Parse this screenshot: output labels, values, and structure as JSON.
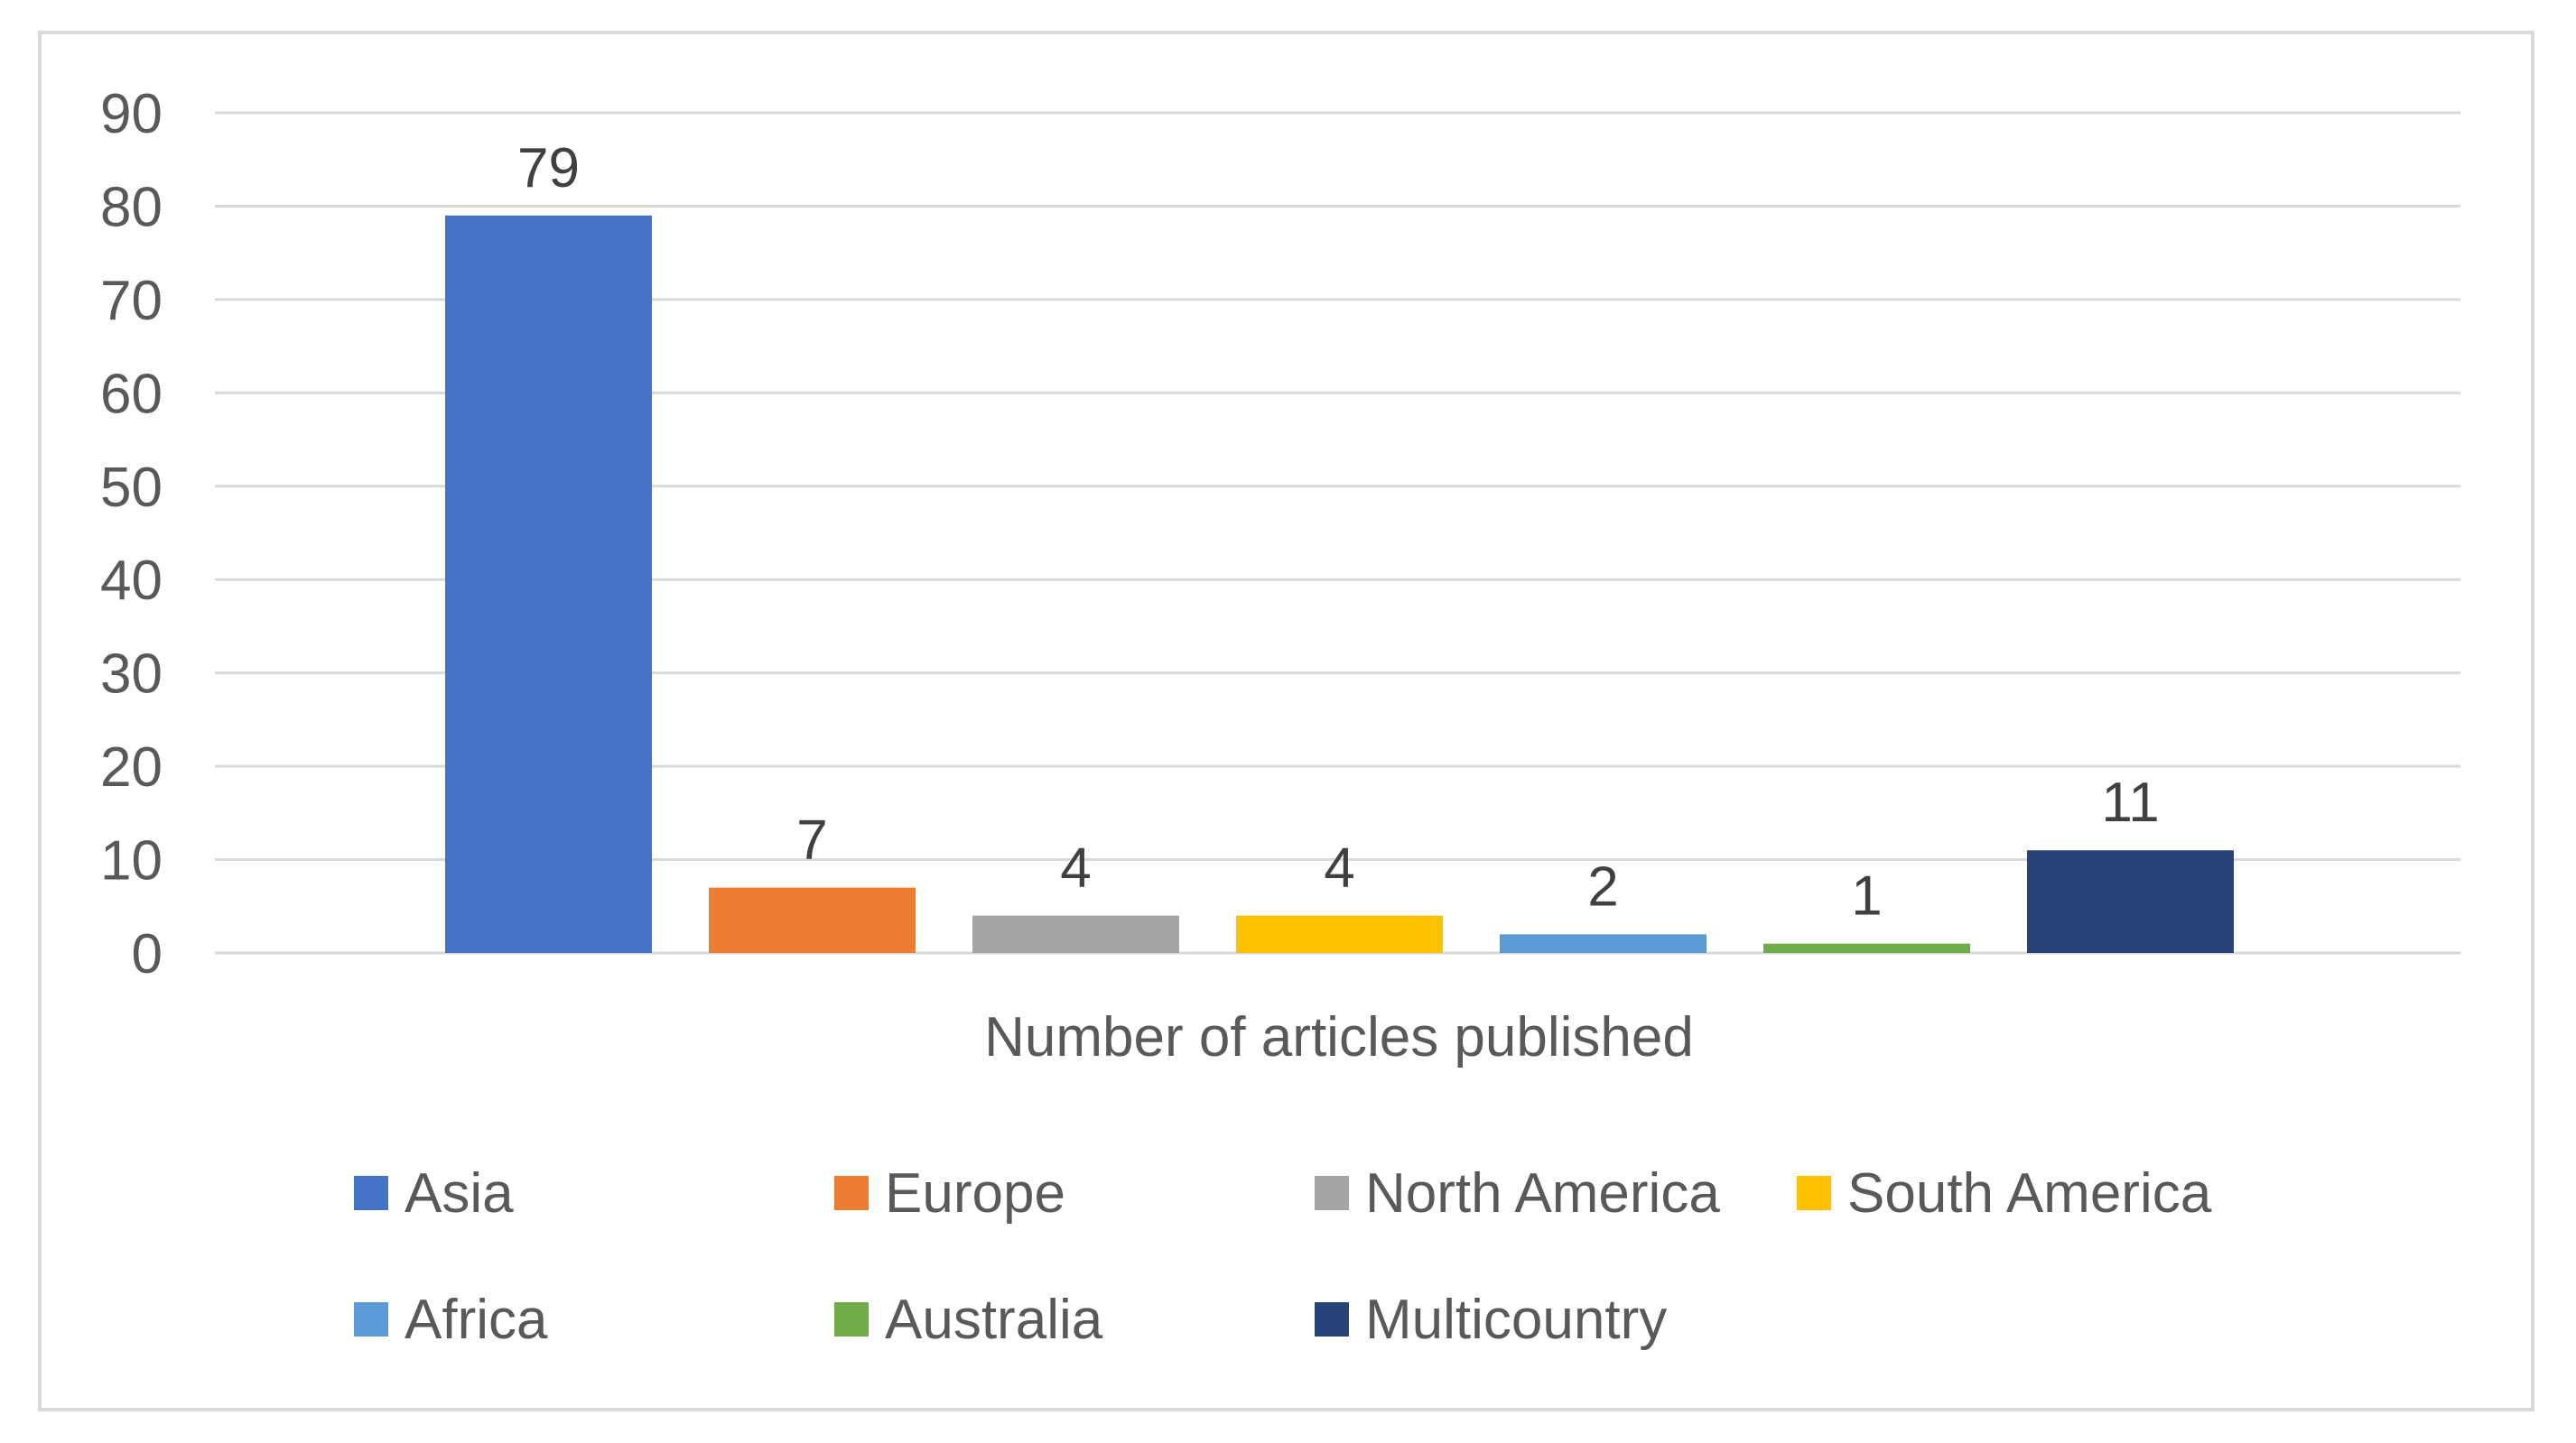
{
  "chart_data": {
    "type": "bar",
    "title": "",
    "xlabel": "Number of articles published",
    "ylabel": "",
    "ylim": [
      0,
      90
    ],
    "yticks": [
      0,
      10,
      20,
      30,
      40,
      50,
      60,
      70,
      80,
      90
    ],
    "grid": true,
    "legend_position": "bottom",
    "series": [
      {
        "name": "Asia",
        "value": 79,
        "color": "#4472C4"
      },
      {
        "name": "Europe",
        "value": 7,
        "color": "#ED7D31"
      },
      {
        "name": "North America",
        "value": 4,
        "color": "#A5A5A5"
      },
      {
        "name": "South America",
        "value": 4,
        "color": "#FFC000"
      },
      {
        "name": "Africa",
        "value": 2,
        "color": "#5B9BD5"
      },
      {
        "name": "Australia",
        "value": 1,
        "color": "#70AD47"
      },
      {
        "name": "Multicountry",
        "value": 11,
        "color": "#264478"
      }
    ],
    "data_labels": true
  },
  "colors": {
    "gridline": "#d9d9d9",
    "text": "#595959",
    "frame": "#d9d9d9"
  }
}
